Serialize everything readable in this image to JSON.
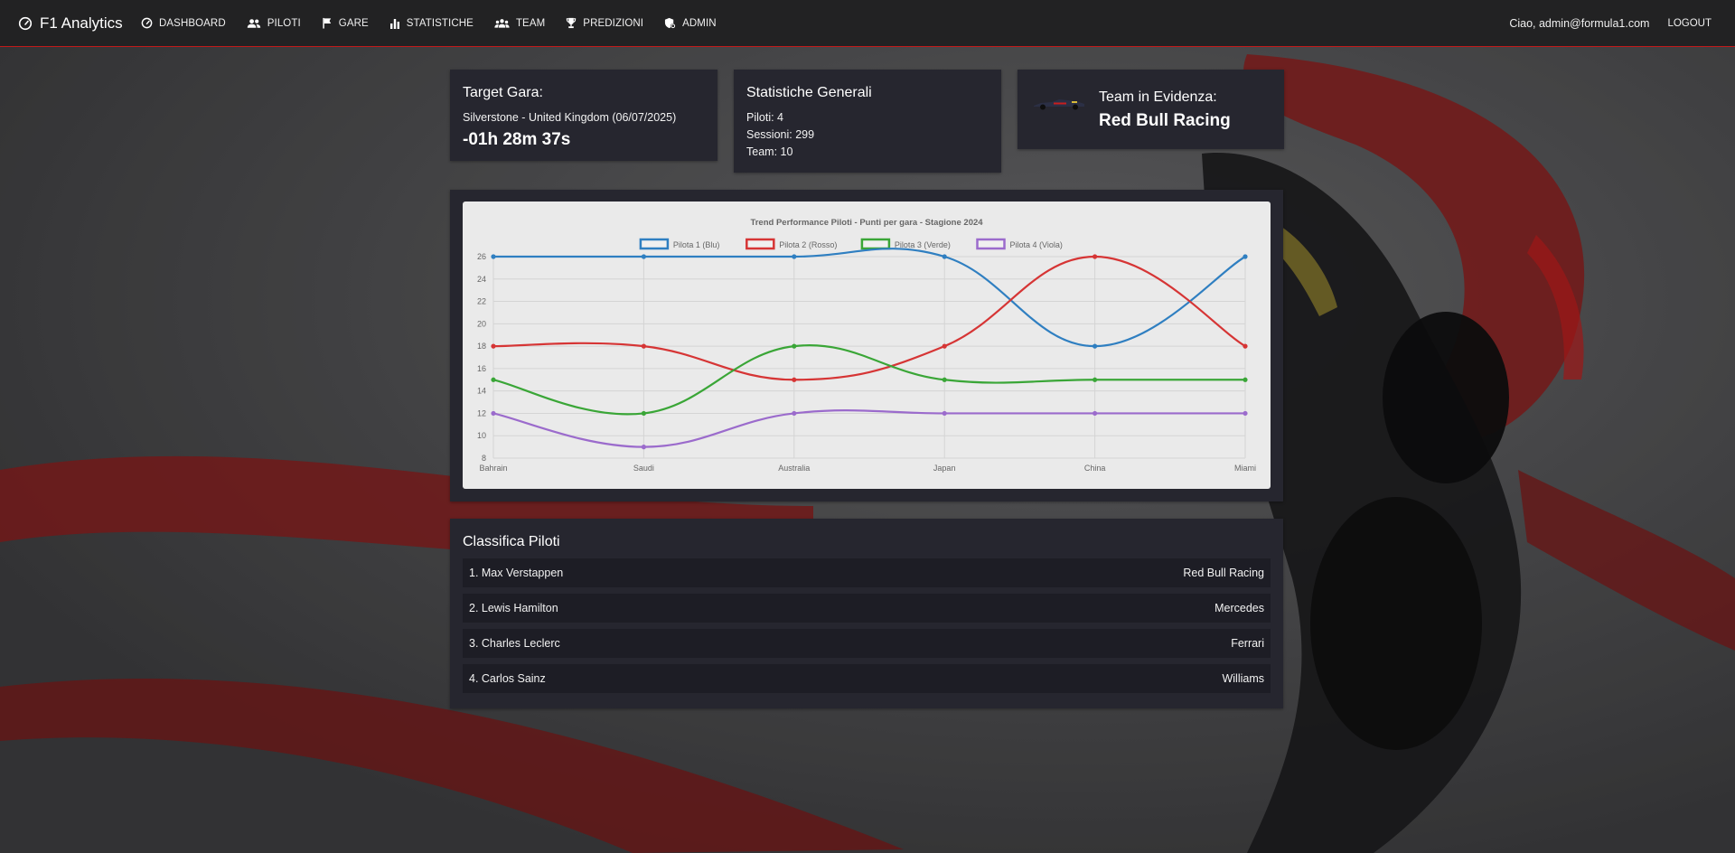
{
  "nav": {
    "brand": "F1 Analytics",
    "items": [
      {
        "label": "DASHBOARD",
        "icon": "speedometer-icon"
      },
      {
        "label": "PILOTI",
        "icon": "people-icon"
      },
      {
        "label": "GARE",
        "icon": "flag-icon"
      },
      {
        "label": "STATISTICHE",
        "icon": "bar-chart-icon"
      },
      {
        "label": "TEAM",
        "icon": "team-icon"
      },
      {
        "label": "PREDIZIONI",
        "icon": "trophy-icon"
      },
      {
        "label": "ADMIN",
        "icon": "admin-icon"
      }
    ],
    "greeting": "Ciao, admin@formula1.com",
    "logout": "LOGOUT"
  },
  "target": {
    "title": "Target Gara:",
    "race": "Silverstone - United Kingdom (06/07/2025)",
    "countdown": "-01h 28m 37s"
  },
  "stats": {
    "title": "Statistiche Generali",
    "piloti": "Piloti: 4",
    "sessioni": "Sessioni: 299",
    "team": "Team: 10"
  },
  "featured_team": {
    "title": "Team in Evidenza:",
    "name": "Red Bull Racing"
  },
  "chart_data": {
    "type": "line",
    "title": "Trend Performance Piloti - Punti per gara - Stagione 2024",
    "categories": [
      "Bahrain",
      "Saudi",
      "Australia",
      "Japan",
      "China",
      "Miami"
    ],
    "ylim": [
      8,
      26
    ],
    "yticks": [
      8,
      10,
      12,
      14,
      16,
      18,
      20,
      22,
      24,
      26
    ],
    "grid": true,
    "legend": "top",
    "series": [
      {
        "name": "Pilota 1 (Blu)",
        "color": "#2f7fc1",
        "values": [
          26,
          26,
          26,
          26,
          18,
          26
        ]
      },
      {
        "name": "Pilota 2 (Rosso)",
        "color": "#d63535",
        "values": [
          18,
          18,
          15,
          18,
          26,
          18
        ]
      },
      {
        "name": "Pilota 3 (Verde)",
        "color": "#3aa637",
        "values": [
          15,
          12,
          18,
          15,
          15,
          15
        ]
      },
      {
        "name": "Pilota 4 (Viola)",
        "color": "#9b6bcc",
        "values": [
          12,
          9,
          12,
          12,
          12,
          12
        ]
      }
    ]
  },
  "standings": {
    "title": "Classifica Piloti",
    "rows": [
      {
        "driver": "1. Max Verstappen",
        "team": "Red Bull Racing"
      },
      {
        "driver": "2. Lewis Hamilton",
        "team": "Mercedes"
      },
      {
        "driver": "3. Charles Leclerc",
        "team": "Ferrari"
      },
      {
        "driver": "4. Carlos Sainz",
        "team": "Williams"
      }
    ]
  }
}
